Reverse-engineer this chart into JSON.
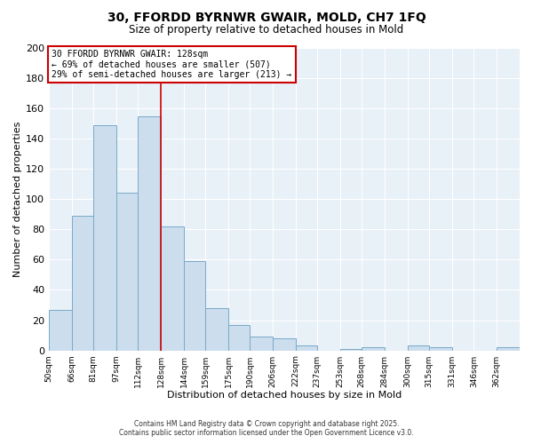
{
  "title1": "30, FFORDD BYRNWR GWAIR, MOLD, CH7 1FQ",
  "title2": "Size of property relative to detached houses in Mold",
  "xlabel": "Distribution of detached houses by size in Mold",
  "ylabel": "Number of detached properties",
  "bin_labels": [
    "50sqm",
    "66sqm",
    "81sqm",
    "97sqm",
    "112sqm",
    "128sqm",
    "144sqm",
    "159sqm",
    "175sqm",
    "190sqm",
    "206sqm",
    "222sqm",
    "237sqm",
    "253sqm",
    "268sqm",
    "284sqm",
    "300sqm",
    "315sqm",
    "331sqm",
    "346sqm",
    "362sqm"
  ],
  "bin_edges": [
    50,
    66,
    81,
    97,
    112,
    128,
    144,
    159,
    175,
    190,
    206,
    222,
    237,
    253,
    268,
    284,
    300,
    315,
    331,
    346,
    362,
    378
  ],
  "bar_heights": [
    27,
    89,
    149,
    104,
    155,
    82,
    59,
    28,
    17,
    9,
    8,
    3,
    0,
    1,
    2,
    0,
    3,
    2,
    0,
    0,
    2
  ],
  "bar_color": "#ccdded",
  "bar_edge_color": "#7aaac8",
  "reference_line_x": 128,
  "annotation_title": "30 FFORDD BYRNWR GWAIR: 128sqm",
  "annotation_line1": "← 69% of detached houses are smaller (507)",
  "annotation_line2": "29% of semi-detached houses are larger (213) →",
  "annotation_box_edge": "#cc0000",
  "ref_line_color": "#cc0000",
  "ylim": [
    0,
    200
  ],
  "yticks": [
    0,
    20,
    40,
    60,
    80,
    100,
    120,
    140,
    160,
    180,
    200
  ],
  "footer1": "Contains HM Land Registry data © Crown copyright and database right 2025.",
  "footer2": "Contains public sector information licensed under the Open Government Licence v3.0.",
  "bg_color": "#ffffff",
  "plot_bg_color": "#e8f0f8",
  "grid_color": "#ffffff"
}
